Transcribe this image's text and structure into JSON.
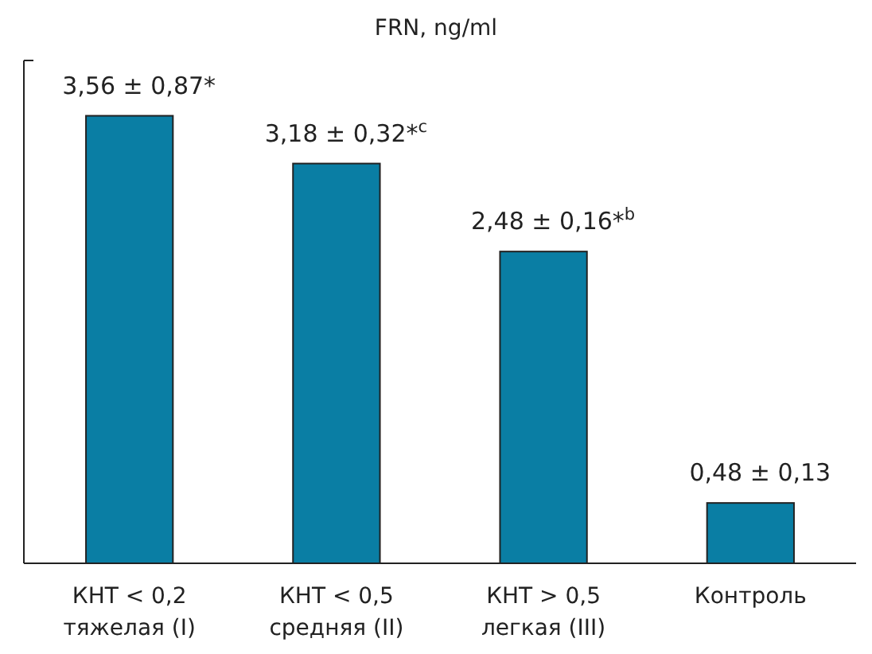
{
  "chart_data": {
    "type": "bar",
    "title": "FRN, ng/ml",
    "categories": [
      "КНТ < 0,2\nтяжелая (I)",
      "КНТ < 0,5\nсредняя (II)",
      "КНТ > 0,5\nлегкая (III)",
      "Контроль"
    ],
    "values": [
      3.56,
      3.18,
      2.48,
      0.48
    ],
    "value_labels": [
      "3,56 ± 0,87*",
      "3,18 ± 0,32*$^{c}$",
      "2,48 ± 0,16*$^{b}$",
      "0,48 ± 0,13"
    ],
    "color": "#0a7ea4",
    "ylim": [
      0,
      4
    ],
    "tick_labels": "x"
  }
}
